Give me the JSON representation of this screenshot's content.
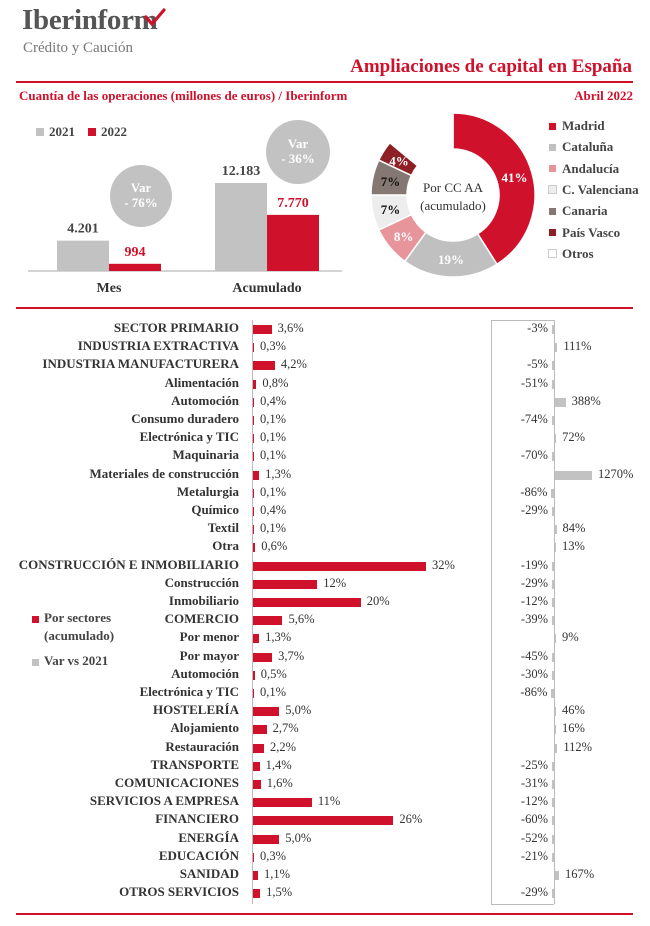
{
  "header": {
    "brand": "Iberinform",
    "brand_sub": "Crédito y Caución",
    "title": "Ampliaciones de capital en España",
    "subtitle": "Cuantía de las operaciones (millones de euros) / Iberinform",
    "date": "Abril 2022"
  },
  "colors": {
    "red": "#d0112b",
    "gray": "#c2c2c2"
  },
  "icons": {
    "logo_mark": "red-checkmark-icon"
  },
  "chart_data": [
    {
      "type": "bar",
      "categories": [
        "Mes",
        "Acumulado"
      ],
      "series": [
        {
          "name": "2021",
          "values": [
            4201,
            12183
          ],
          "labels": [
            "4.201",
            "12.183"
          ]
        },
        {
          "name": "2022",
          "values": [
            994,
            7770
          ],
          "labels": [
            "994",
            "7.770"
          ]
        }
      ],
      "annotations": [
        {
          "category": "Mes",
          "line1": "Var",
          "line2": "- 76%"
        },
        {
          "category": "Acumulado",
          "line1": "Var",
          "line2": "- 36%"
        }
      ]
    },
    {
      "type": "pie",
      "center_label_1": "Por CC AA",
      "center_label_2": "(acumulado)",
      "slices": [
        {
          "name": "Madrid",
          "value": 41,
          "label": "41%",
          "color": "#d0112b"
        },
        {
          "name": "Cataluña",
          "value": 19,
          "label": "19%",
          "color": "#c0c0c0"
        },
        {
          "name": "Andalucía",
          "value": 8,
          "label": "8%",
          "color": "#e8949b"
        },
        {
          "name": "C. Valenciana",
          "value": 7,
          "label": "7%",
          "color": "#ededed"
        },
        {
          "name": "Canaria",
          "value": 7,
          "label": "7%",
          "color": "#857872"
        },
        {
          "name": "País Vasco",
          "value": 4,
          "label": "4%",
          "color": "#8e1f24"
        },
        {
          "name": "Otros",
          "value": 14,
          "label": "",
          "color": "#ffffff"
        }
      ]
    },
    {
      "type": "bar",
      "orientation": "horizontal",
      "legend": {
        "sectors": "Por sectores (acumulado)",
        "sectors_line1": "Por sectores",
        "sectors_line2": "(acumulado)",
        "var": "Var vs 2021"
      },
      "rows": [
        {
          "label": "SECTOR PRIMARIO",
          "share": 3.6,
          "share_label": "3,6%",
          "var": -3,
          "var_label": "-3%"
        },
        {
          "label": "INDUSTRIA EXTRACTIVA",
          "share": 0.3,
          "share_label": "0,3%",
          "var": 111,
          "var_label": "111%"
        },
        {
          "label": "INDUSTRIA MANUFACTURERA",
          "share": 4.2,
          "share_label": "4,2%",
          "var": -5,
          "var_label": "-5%"
        },
        {
          "label": "Alimentación",
          "share": 0.8,
          "share_label": "0,8%",
          "var": -51,
          "var_label": "-51%"
        },
        {
          "label": "Automoción",
          "share": 0.4,
          "share_label": "0,4%",
          "var": 388,
          "var_label": "388%"
        },
        {
          "label": "Consumo duradero",
          "share": 0.1,
          "share_label": "0,1%",
          "var": -74,
          "var_label": "-74%"
        },
        {
          "label": "Electrónica y TIC",
          "share": 0.1,
          "share_label": "0,1%",
          "var": 72,
          "var_label": "72%"
        },
        {
          "label": "Maquinaria",
          "share": 0.1,
          "share_label": "0,1%",
          "var": -70,
          "var_label": "-70%"
        },
        {
          "label": "Materiales de construcción",
          "share": 1.3,
          "share_label": "1,3%",
          "var": 1270,
          "var_label": "1270%"
        },
        {
          "label": "Metalurgia",
          "share": 0.1,
          "share_label": "0,1%",
          "var": -86,
          "var_label": "-86%"
        },
        {
          "label": "Químico",
          "share": 0.4,
          "share_label": "0,4%",
          "var": -29,
          "var_label": "-29%"
        },
        {
          "label": "Textil",
          "share": 0.1,
          "share_label": "0,1%",
          "var": 84,
          "var_label": "84%"
        },
        {
          "label": "Otra",
          "share": 0.6,
          "share_label": "0,6%",
          "var": 13,
          "var_label": "13%"
        },
        {
          "label": "CONSTRUCCIÓN E INMOBILIARIO",
          "share": 32,
          "share_label": "32%",
          "var": -19,
          "var_label": "-19%"
        },
        {
          "label": "Construcción",
          "share": 12,
          "share_label": "12%",
          "var": -29,
          "var_label": "-29%"
        },
        {
          "label": "Inmobiliario",
          "share": 20,
          "share_label": "20%",
          "var": -12,
          "var_label": "-12%"
        },
        {
          "label": "COMERCIO",
          "share": 5.6,
          "share_label": "5,6%",
          "var": -39,
          "var_label": "-39%"
        },
        {
          "label": "Por menor",
          "share": 1.3,
          "share_label": "1,3%",
          "var": 9,
          "var_label": "9%"
        },
        {
          "label": "Por mayor",
          "share": 3.7,
          "share_label": "3,7%",
          "var": -45,
          "var_label": "-45%"
        },
        {
          "label": "Automoción",
          "share": 0.5,
          "share_label": "0,5%",
          "var": -30,
          "var_label": "-30%"
        },
        {
          "label": "Electrónica y TIC",
          "share": 0.1,
          "share_label": "0,1%",
          "var": -86,
          "var_label": "-86%"
        },
        {
          "label": "HOSTELERÍA",
          "share": 5.0,
          "share_label": "5,0%",
          "var": 46,
          "var_label": "46%"
        },
        {
          "label": "Alojamiento",
          "share": 2.7,
          "share_label": "2,7%",
          "var": 16,
          "var_label": "16%"
        },
        {
          "label": "Restauración",
          "share": 2.2,
          "share_label": "2,2%",
          "var": 112,
          "var_label": "112%"
        },
        {
          "label": "TRANSPORTE",
          "share": 1.4,
          "share_label": "1,4%",
          "var": -25,
          "var_label": "-25%"
        },
        {
          "label": "COMUNICACIONES",
          "share": 1.6,
          "share_label": "1,6%",
          "var": -31,
          "var_label": "-31%"
        },
        {
          "label": "SERVICIOS A EMPRESA",
          "share": 11,
          "share_label": "11%",
          "var": -12,
          "var_label": "-12%"
        },
        {
          "label": "FINANCIERO",
          "share": 26,
          "share_label": "26%",
          "var": -60,
          "var_label": "-60%"
        },
        {
          "label": "ENERGÍA",
          "share": 5.0,
          "share_label": "5,0%",
          "var": -52,
          "var_label": "-52%"
        },
        {
          "label": "EDUCACIÓN",
          "share": 0.3,
          "share_label": "0,3%",
          "var": -21,
          "var_label": "-21%"
        },
        {
          "label": "SANIDAD",
          "share": 1.1,
          "share_label": "1,1%",
          "var": 167,
          "var_label": "167%"
        },
        {
          "label": "OTROS SERVICIOS",
          "share": 1.5,
          "share_label": "1,5%",
          "var": -29,
          "var_label": "-29%"
        }
      ]
    }
  ]
}
